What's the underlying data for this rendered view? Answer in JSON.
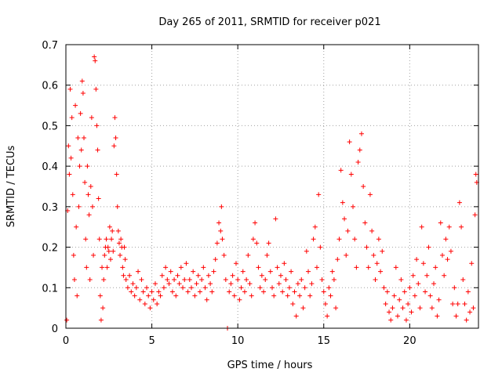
{
  "chart_data": {
    "type": "scatter",
    "title": "Day 265 of 2011, SRMTID for receiver p021",
    "xlabel": "GPS time / hours",
    "ylabel": "SRMTID / TECUs",
    "xlim": [
      0,
      24
    ],
    "ylim": [
      0,
      0.7
    ],
    "xticks": [
      0,
      5,
      10,
      15,
      20
    ],
    "xtick_labels": [
      "0",
      "5",
      "10",
      "15",
      "20"
    ],
    "yticks": [
      0,
      0.1,
      0.2,
      0.3,
      0.4,
      0.5,
      0.6,
      0.7
    ],
    "ytick_labels": [
      "0",
      "0.1",
      "0.2",
      "0.3",
      "0.4",
      "0.5",
      "0.6",
      "0.7"
    ],
    "grid": true,
    "marker": "+",
    "color": "#ff0000",
    "series": [
      {
        "name": "SRMTID",
        "points": [
          [
            0.05,
            0.02
          ],
          [
            0.1,
            0.29
          ],
          [
            0.15,
            0.45
          ],
          [
            0.2,
            0.38
          ],
          [
            0.25,
            0.59
          ],
          [
            0.3,
            0.42
          ],
          [
            0.35,
            0.52
          ],
          [
            0.4,
            0.33
          ],
          [
            0.45,
            0.18
          ],
          [
            0.5,
            0.12
          ],
          [
            0.55,
            0.55
          ],
          [
            0.6,
            0.25
          ],
          [
            0.65,
            0.08
          ],
          [
            0.7,
            0.47
          ],
          [
            0.75,
            0.3
          ],
          [
            0.8,
            0.4
          ],
          [
            0.85,
            0.53
          ],
          [
            0.9,
            0.44
          ],
          [
            0.95,
            0.61
          ],
          [
            1.0,
            0.58
          ],
          [
            1.05,
            0.47
          ],
          [
            1.1,
            0.36
          ],
          [
            1.15,
            0.22
          ],
          [
            1.2,
            0.15
          ],
          [
            1.25,
            0.4
          ],
          [
            1.3,
            0.33
          ],
          [
            1.35,
            0.28
          ],
          [
            1.4,
            0.12
          ],
          [
            1.45,
            0.35
          ],
          [
            1.5,
            0.52
          ],
          [
            1.55,
            0.3
          ],
          [
            1.6,
            0.18
          ],
          [
            1.65,
            0.67
          ],
          [
            1.7,
            0.66
          ],
          [
            1.75,
            0.59
          ],
          [
            1.8,
            0.5
          ],
          [
            1.85,
            0.44
          ],
          [
            1.9,
            0.32
          ],
          [
            1.95,
            0.22
          ],
          [
            2.0,
            0.08
          ],
          [
            2.05,
            0.02
          ],
          [
            2.1,
            0.15
          ],
          [
            2.15,
            0.05
          ],
          [
            2.2,
            0.12
          ],
          [
            2.25,
            0.18
          ],
          [
            2.3,
            0.2
          ],
          [
            2.35,
            0.22
          ],
          [
            2.4,
            0.15
          ],
          [
            2.45,
            0.2
          ],
          [
            2.5,
            0.19
          ],
          [
            2.55,
            0.25
          ],
          [
            2.6,
            0.17
          ],
          [
            2.65,
            0.22
          ],
          [
            2.7,
            0.24
          ],
          [
            2.75,
            0.19
          ],
          [
            2.8,
            0.45
          ],
          [
            2.85,
            0.52
          ],
          [
            2.9,
            0.47
          ],
          [
            2.95,
            0.38
          ],
          [
            3.0,
            0.3
          ],
          [
            3.05,
            0.24
          ],
          [
            3.1,
            0.21
          ],
          [
            3.15,
            0.18
          ],
          [
            3.2,
            0.22
          ],
          [
            3.25,
            0.2
          ],
          [
            3.3,
            0.15
          ],
          [
            3.35,
            0.13
          ],
          [
            3.4,
            0.2
          ],
          [
            3.45,
            0.17
          ],
          [
            3.5,
            0.12
          ],
          [
            3.6,
            0.1
          ],
          [
            3.7,
            0.13
          ],
          [
            3.8,
            0.09
          ],
          [
            3.9,
            0.11
          ],
          [
            4.0,
            0.08
          ],
          [
            4.1,
            0.1
          ],
          [
            4.2,
            0.14
          ],
          [
            4.3,
            0.07
          ],
          [
            4.4,
            0.12
          ],
          [
            4.5,
            0.09
          ],
          [
            4.6,
            0.06
          ],
          [
            4.7,
            0.1
          ],
          [
            4.8,
            0.08
          ],
          [
            4.9,
            0.05
          ],
          [
            5.0,
            0.09
          ],
          [
            5.1,
            0.07
          ],
          [
            5.2,
            0.11
          ],
          [
            5.3,
            0.06
          ],
          [
            5.4,
            0.09
          ],
          [
            5.5,
            0.08
          ],
          [
            5.6,
            0.13
          ],
          [
            5.7,
            0.1
          ],
          [
            5.8,
            0.15
          ],
          [
            5.9,
            0.12
          ],
          [
            6.0,
            0.11
          ],
          [
            6.1,
            0.14
          ],
          [
            6.2,
            0.09
          ],
          [
            6.3,
            0.12
          ],
          [
            6.4,
            0.08
          ],
          [
            6.5,
            0.13
          ],
          [
            6.6,
            0.11
          ],
          [
            6.7,
            0.15
          ],
          [
            6.8,
            0.1
          ],
          [
            6.9,
            0.12
          ],
          [
            7.0,
            0.16
          ],
          [
            7.1,
            0.09
          ],
          [
            7.2,
            0.12
          ],
          [
            7.3,
            0.1
          ],
          [
            7.4,
            0.14
          ],
          [
            7.5,
            0.08
          ],
          [
            7.6,
            0.11
          ],
          [
            7.7,
            0.13
          ],
          [
            7.8,
            0.09
          ],
          [
            7.9,
            0.12
          ],
          [
            8.0,
            0.15
          ],
          [
            8.1,
            0.1
          ],
          [
            8.2,
            0.07
          ],
          [
            8.3,
            0.13
          ],
          [
            8.4,
            0.11
          ],
          [
            8.5,
            0.09
          ],
          [
            8.6,
            0.14
          ],
          [
            8.7,
            0.17
          ],
          [
            8.8,
            0.21
          ],
          [
            8.9,
            0.26
          ],
          [
            9.0,
            0.24
          ],
          [
            9.05,
            0.3
          ],
          [
            9.1,
            0.22
          ],
          [
            9.2,
            0.18
          ],
          [
            9.3,
            0.12
          ],
          [
            9.4,
            0.0
          ],
          [
            9.5,
            0.09
          ],
          [
            9.6,
            0.11
          ],
          [
            9.7,
            0.13
          ],
          [
            9.8,
            0.08
          ],
          [
            9.9,
            0.16
          ],
          [
            10.0,
            0.12
          ],
          [
            10.1,
            0.07
          ],
          [
            10.2,
            0.1
          ],
          [
            10.3,
            0.14
          ],
          [
            10.4,
            0.09
          ],
          [
            10.5,
            0.12
          ],
          [
            10.6,
            0.18
          ],
          [
            10.7,
            0.11
          ],
          [
            10.8,
            0.08
          ],
          [
            10.9,
            0.22
          ],
          [
            11.0,
            0.26
          ],
          [
            11.1,
            0.21
          ],
          [
            11.2,
            0.15
          ],
          [
            11.3,
            0.1
          ],
          [
            11.4,
            0.13
          ],
          [
            11.5,
            0.09
          ],
          [
            11.6,
            0.12
          ],
          [
            11.7,
            0.18
          ],
          [
            11.8,
            0.21
          ],
          [
            11.9,
            0.14
          ],
          [
            12.0,
            0.1
          ],
          [
            12.1,
            0.08
          ],
          [
            12.2,
            0.27
          ],
          [
            12.3,
            0.15
          ],
          [
            12.4,
            0.11
          ],
          [
            12.5,
            0.13
          ],
          [
            12.6,
            0.09
          ],
          [
            12.7,
            0.16
          ],
          [
            12.8,
            0.12
          ],
          [
            12.9,
            0.08
          ],
          [
            13.0,
            0.1
          ],
          [
            13.1,
            0.14
          ],
          [
            13.2,
            0.06
          ],
          [
            13.3,
            0.09
          ],
          [
            13.4,
            0.03
          ],
          [
            13.5,
            0.11
          ],
          [
            13.6,
            0.08
          ],
          [
            13.7,
            0.12
          ],
          [
            13.8,
            0.05
          ],
          [
            13.9,
            0.1
          ],
          [
            14.0,
            0.19
          ],
          [
            14.1,
            0.14
          ],
          [
            14.2,
            0.08
          ],
          [
            14.3,
            0.11
          ],
          [
            14.4,
            0.22
          ],
          [
            14.5,
            0.25
          ],
          [
            14.6,
            0.15
          ],
          [
            14.7,
            0.33
          ],
          [
            14.8,
            0.2
          ],
          [
            14.9,
            0.12
          ],
          [
            15.0,
            0.09
          ],
          [
            15.1,
            0.06
          ],
          [
            15.2,
            0.03
          ],
          [
            15.3,
            0.1
          ],
          [
            15.4,
            0.08
          ],
          [
            15.5,
            0.14
          ],
          [
            15.6,
            0.12
          ],
          [
            15.7,
            0.05
          ],
          [
            15.8,
            0.17
          ],
          [
            15.9,
            0.22
          ],
          [
            16.0,
            0.39
          ],
          [
            16.1,
            0.31
          ],
          [
            16.2,
            0.27
          ],
          [
            16.3,
            0.18
          ],
          [
            16.4,
            0.24
          ],
          [
            16.5,
            0.46
          ],
          [
            16.6,
            0.38
          ],
          [
            16.7,
            0.3
          ],
          [
            16.8,
            0.22
          ],
          [
            16.9,
            0.15
          ],
          [
            17.0,
            0.41
          ],
          [
            17.1,
            0.44
          ],
          [
            17.2,
            0.48
          ],
          [
            17.3,
            0.35
          ],
          [
            17.4,
            0.26
          ],
          [
            17.5,
            0.2
          ],
          [
            17.6,
            0.15
          ],
          [
            17.7,
            0.33
          ],
          [
            17.8,
            0.24
          ],
          [
            17.9,
            0.18
          ],
          [
            18.0,
            0.12
          ],
          [
            18.1,
            0.16
          ],
          [
            18.2,
            0.22
          ],
          [
            18.3,
            0.14
          ],
          [
            18.4,
            0.19
          ],
          [
            18.5,
            0.1
          ],
          [
            18.6,
            0.06
          ],
          [
            18.7,
            0.09
          ],
          [
            18.8,
            0.04
          ],
          [
            18.9,
            0.02
          ],
          [
            19.0,
            0.05
          ],
          [
            19.1,
            0.08
          ],
          [
            19.2,
            0.15
          ],
          [
            19.3,
            0.03
          ],
          [
            19.4,
            0.07
          ],
          [
            19.5,
            0.12
          ],
          [
            19.6,
            0.05
          ],
          [
            19.7,
            0.09
          ],
          [
            19.8,
            0.02
          ],
          [
            19.9,
            0.06
          ],
          [
            20.0,
            0.1
          ],
          [
            20.1,
            0.04
          ],
          [
            20.2,
            0.13
          ],
          [
            20.3,
            0.08
          ],
          [
            20.4,
            0.17
          ],
          [
            20.5,
            0.11
          ],
          [
            20.6,
            0.05
          ],
          [
            20.7,
            0.25
          ],
          [
            20.8,
            0.16
          ],
          [
            20.9,
            0.09
          ],
          [
            21.0,
            0.13
          ],
          [
            21.1,
            0.2
          ],
          [
            21.2,
            0.08
          ],
          [
            21.3,
            0.05
          ],
          [
            21.4,
            0.11
          ],
          [
            21.5,
            0.15
          ],
          [
            21.6,
            0.03
          ],
          [
            21.7,
            0.07
          ],
          [
            21.8,
            0.26
          ],
          [
            21.9,
            0.18
          ],
          [
            22.0,
            0.13
          ],
          [
            22.1,
            0.22
          ],
          [
            22.2,
            0.17
          ],
          [
            22.3,
            0.25
          ],
          [
            22.4,
            0.19
          ],
          [
            22.5,
            0.06
          ],
          [
            22.6,
            0.1
          ],
          [
            22.7,
            0.03
          ],
          [
            22.8,
            0.06
          ],
          [
            22.9,
            0.31
          ],
          [
            23.0,
            0.25
          ],
          [
            23.1,
            0.12
          ],
          [
            23.2,
            0.06
          ],
          [
            23.3,
            0.02
          ],
          [
            23.4,
            0.09
          ],
          [
            23.5,
            0.04
          ],
          [
            23.6,
            0.16
          ],
          [
            23.7,
            0.05
          ],
          [
            23.8,
            0.28
          ],
          [
            23.85,
            0.38
          ],
          [
            23.9,
            0.36
          ]
        ]
      }
    ]
  }
}
